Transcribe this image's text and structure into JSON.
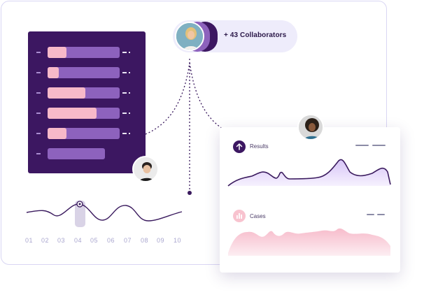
{
  "collaborators": {
    "label": "+ 43 Collaborators"
  },
  "bar_panel": {
    "bars": [
      {
        "fill_fraction": 0.26
      },
      {
        "fill_fraction": 0.16
      },
      {
        "fill_fraction": 0.52
      },
      {
        "fill_fraction": 0.68
      },
      {
        "fill_fraction": 0.26
      },
      {
        "fill_fraction": 0.0
      }
    ]
  },
  "timeline": {
    "labels": [
      "01",
      "02",
      "03",
      "04",
      "05",
      "06",
      "07",
      "08",
      "09",
      "10"
    ],
    "selected": "04"
  },
  "results_card": {
    "results_title": "Results",
    "cases_title": "Cases"
  },
  "colors": {
    "panel_purple": "#3c1761",
    "bar_track": "#8d62bd",
    "bar_fill_pink": "#f7b9c9",
    "results_line": "#3a1a5e",
    "results_area": "#e3d7fb",
    "cases_area": "#f9c9d4",
    "accent_label": "#a9a6cf"
  },
  "icons": {
    "results": "arrow-up-icon",
    "cases": "bar-chart-icon"
  }
}
